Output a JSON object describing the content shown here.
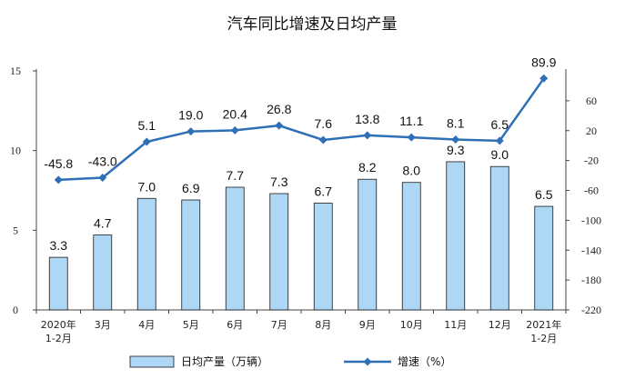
{
  "chart_data": {
    "type": "bar",
    "title": "汽车同比增速及日均产量",
    "categories": [
      [
        "2020年",
        "1-2月"
      ],
      [
        "3月"
      ],
      [
        "4月"
      ],
      [
        "5月"
      ],
      [
        "6月"
      ],
      [
        "7月"
      ],
      [
        "8月"
      ],
      [
        "9月"
      ],
      [
        "10月"
      ],
      [
        "11月"
      ],
      [
        "12月"
      ],
      [
        "2021年",
        "1-2月"
      ]
    ],
    "series": [
      {
        "name": "日均产量（万辆）",
        "type": "bar",
        "axis": "left",
        "color": "#aed6f5",
        "values": [
          3.3,
          4.7,
          7.0,
          6.9,
          7.7,
          7.3,
          6.7,
          8.2,
          8.0,
          9.3,
          9.0,
          6.5
        ],
        "labels": [
          "3.3",
          "4.7",
          "7.0",
          "6.9",
          "7.7",
          "7.3",
          "6.7",
          "8.2",
          "8.0",
          "9.3",
          "9.0",
          "6.5"
        ]
      },
      {
        "name": "增速（%）",
        "type": "line",
        "axis": "right",
        "color": "#2f6fb6",
        "values": [
          -45.8,
          -43.0,
          5.1,
          19.0,
          20.4,
          26.8,
          7.6,
          13.8,
          11.1,
          8.1,
          6.5,
          89.9
        ],
        "labels": [
          "-45.8",
          "-43.0",
          "5.1",
          "19.0",
          "20.4",
          "26.8",
          "7.6",
          "13.8",
          "11.1",
          "8.1",
          "6.5",
          "89.9"
        ]
      }
    ],
    "left_axis": {
      "ylim": [
        0,
        15
      ],
      "ticks": [
        "0",
        "5",
        "10",
        "15"
      ]
    },
    "right_axis": {
      "ylim": [
        -220,
        100
      ],
      "ticks": [
        "60",
        "20",
        "-20",
        "-60",
        "-100",
        "-140",
        "-180",
        "-220"
      ]
    },
    "legend_position": "bottom",
    "grid": false
  }
}
